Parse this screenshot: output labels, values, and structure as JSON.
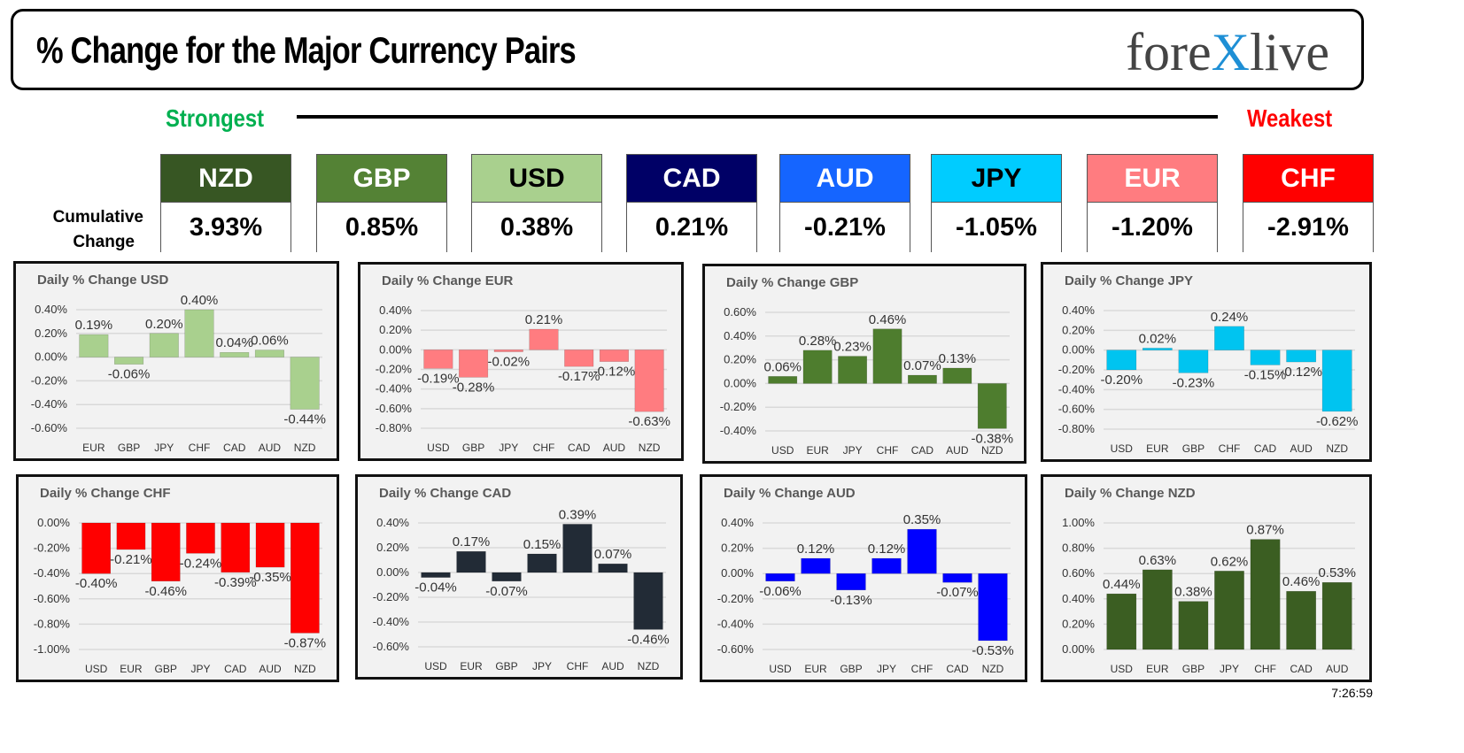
{
  "header": {
    "title": "% Change for the Major Currency Pairs",
    "logo": "forexlive"
  },
  "scale": {
    "strongest": "Strongest",
    "weakest": "Weakest"
  },
  "cumulative": {
    "label_line1": "Cumulative",
    "label_line2": "Change",
    "currencies": [
      {
        "code": "NZD",
        "value": "3.93%",
        "color": "#375623",
        "text": "#ffffff"
      },
      {
        "code": "GBP",
        "value": "0.85%",
        "color": "#548235",
        "text": "#ffffff"
      },
      {
        "code": "USD",
        "value": "0.38%",
        "color": "#a9d08e",
        "text": "#000000"
      },
      {
        "code": "CAD",
        "value": "0.21%",
        "color": "#000066",
        "text": "#ffffff"
      },
      {
        "code": "AUD",
        "value": "-0.21%",
        "color": "#1565ff",
        "text": "#ffffff"
      },
      {
        "code": "JPY",
        "value": "-1.05%",
        "color": "#00ccff",
        "text": "#000000"
      },
      {
        "code": "EUR",
        "value": "-1.20%",
        "color": "#ff7c80",
        "text": "#ffffff"
      },
      {
        "code": "CHF",
        "value": "-2.91%",
        "color": "#ff0000",
        "text": "#ffffff"
      }
    ]
  },
  "chart_data": [
    {
      "type": "bar",
      "title": "Daily % Change USD",
      "categories": [
        "EUR",
        "GBP",
        "JPY",
        "CHF",
        "CAD",
        "AUD",
        "NZD"
      ],
      "values": [
        0.19,
        -0.06,
        0.2,
        0.4,
        0.04,
        0.06,
        -0.44
      ],
      "ylim": [
        -0.6,
        0.4
      ],
      "color": "#a9d08e",
      "grid": true
    },
    {
      "type": "bar",
      "title": "Daily % Change EUR",
      "categories": [
        "USD",
        "GBP",
        "JPY",
        "CHF",
        "CAD",
        "AUD",
        "NZD"
      ],
      "values": [
        -0.19,
        -0.28,
        -0.02,
        0.21,
        -0.17,
        -0.12,
        -0.63
      ],
      "ylim": [
        -0.8,
        0.4
      ],
      "color": "#ff7c80",
      "grid": true
    },
    {
      "type": "bar",
      "title": "Daily % Change GBP",
      "categories": [
        "USD",
        "EUR",
        "JPY",
        "CHF",
        "CAD",
        "AUD",
        "NZD"
      ],
      "values": [
        0.06,
        0.28,
        0.23,
        0.46,
        0.07,
        0.13,
        -0.38
      ],
      "ylim": [
        -0.4,
        0.6
      ],
      "color": "#4e7d2e",
      "grid": true
    },
    {
      "type": "bar",
      "title": "Daily % Change JPY",
      "categories": [
        "USD",
        "EUR",
        "GBP",
        "CHF",
        "CAD",
        "AUD",
        "NZD"
      ],
      "values": [
        -0.2,
        0.02,
        -0.23,
        0.24,
        -0.15,
        -0.12,
        -0.62
      ],
      "ylim": [
        -0.8,
        0.4
      ],
      "color": "#00c4f0",
      "grid": true
    },
    {
      "type": "bar",
      "title": "Daily % Change CHF",
      "categories": [
        "USD",
        "EUR",
        "GBP",
        "JPY",
        "CAD",
        "AUD",
        "NZD"
      ],
      "values": [
        -0.4,
        -0.21,
        -0.46,
        -0.24,
        -0.39,
        -0.35,
        -0.87
      ],
      "ylim": [
        -1.0,
        0.0
      ],
      "color": "#ff0000",
      "grid": true
    },
    {
      "type": "bar",
      "title": "Daily % Change CAD",
      "categories": [
        "USD",
        "EUR",
        "GBP",
        "JPY",
        "CHF",
        "AUD",
        "NZD"
      ],
      "values": [
        -0.04,
        0.17,
        -0.07,
        0.15,
        0.39,
        0.07,
        -0.46
      ],
      "ylim": [
        -0.6,
        0.4
      ],
      "color": "#222b36",
      "grid": true
    },
    {
      "type": "bar",
      "title": "Daily % Change AUD",
      "categories": [
        "USD",
        "EUR",
        "GBP",
        "JPY",
        "CHF",
        "CAD",
        "NZD"
      ],
      "values": [
        -0.06,
        0.12,
        -0.13,
        0.12,
        0.35,
        -0.07,
        -0.53
      ],
      "ylim": [
        -0.6,
        0.4
      ],
      "color": "#0000ff",
      "grid": true
    },
    {
      "type": "bar",
      "title": "Daily % Change NZD",
      "categories": [
        "USD",
        "EUR",
        "GBP",
        "JPY",
        "CHF",
        "CAD",
        "AUD"
      ],
      "values": [
        0.44,
        0.63,
        0.38,
        0.62,
        0.87,
        0.46,
        0.53
      ],
      "ylim": [
        0.0,
        1.0
      ],
      "color": "#3b5e22",
      "grid": true
    }
  ],
  "footer": {
    "time": "7:26:59"
  }
}
